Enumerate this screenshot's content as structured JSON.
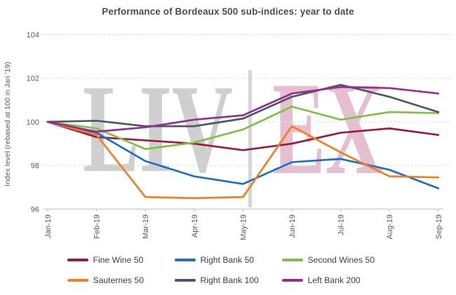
{
  "title": "Performance of Bordeaux 500 sub-indices: year to date",
  "watermark": {
    "left_text": "LIV",
    "right_text": "EX",
    "left_color": "#cfcfcf",
    "bar_color": "#d5d5d5",
    "right_color": "#e5bfcf"
  },
  "axis": {
    "tick_color": "#595959",
    "gridline_color": "#dadada",
    "axisline_color": "#c4c4c4"
  },
  "chart_data": {
    "type": "line",
    "title": "Performance of Bordeaux 500 sub-indices: year to date",
    "xlabel": "",
    "ylabel": "Index level (rebased at 100 in Jan '19)",
    "ylim": [
      96,
      104
    ],
    "yticks": [
      96,
      98,
      100,
      102,
      104
    ],
    "grid": "horizontal-dashed",
    "legend_position": "bottom",
    "categories": [
      "Jan-19",
      "Feb-19",
      "Mar-19",
      "Apr-19",
      "May-19",
      "Jun-19",
      "Jul-19",
      "Aug-19",
      "Sep-19"
    ],
    "series": [
      {
        "name": "Fine Wine 50",
        "color": "#9c1a40",
        "values": [
          100,
          99.3,
          99.15,
          99.0,
          98.7,
          99.0,
          99.5,
          99.7,
          99.4
        ]
      },
      {
        "name": "Right Bank 50",
        "color": "#1b6fc9",
        "values": [
          100,
          99.5,
          98.2,
          97.5,
          97.15,
          98.15,
          98.3,
          97.8,
          96.95
        ]
      },
      {
        "name": "Second Wines 50",
        "color": "#7dc241",
        "values": [
          100,
          99.7,
          98.75,
          99.05,
          99.65,
          100.7,
          100.1,
          100.45,
          100.4
        ]
      },
      {
        "name": "Sauternes 50",
        "color": "#f57d1f",
        "values": [
          100,
          99.4,
          96.55,
          96.5,
          96.55,
          99.8,
          98.6,
          97.5,
          97.45
        ]
      },
      {
        "name": "Right Bank 100",
        "color": "#4b5963",
        "values": [
          100,
          100.05,
          99.8,
          99.8,
          100.15,
          101.15,
          101.7,
          101.15,
          100.45
        ]
      },
      {
        "name": "Left Bank 200",
        "color": "#952d96",
        "values": [
          100,
          99.55,
          99.75,
          100.1,
          100.3,
          101.3,
          101.6,
          101.55,
          101.3
        ]
      }
    ]
  }
}
